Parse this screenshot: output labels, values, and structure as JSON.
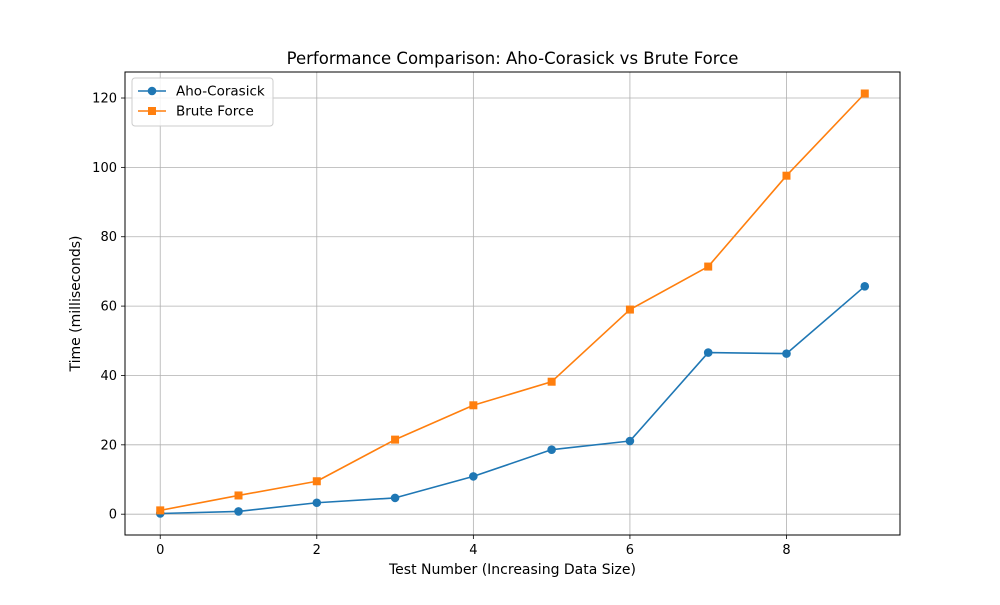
{
  "chart_data": {
    "type": "line",
    "title": "Performance Comparison: Aho-Corasick vs Brute Force",
    "xlabel": "Test Number (Increasing Data Size)",
    "ylabel": "Time (milliseconds)",
    "xlim": [
      -0.45,
      9.45
    ],
    "ylim": [
      -6.0,
      127.5
    ],
    "xticks": [
      0,
      2,
      4,
      6,
      8
    ],
    "yticks": [
      0,
      20,
      40,
      60,
      80,
      100,
      120
    ],
    "grid": true,
    "legend_position": "top-left",
    "x": [
      0,
      1,
      2,
      3,
      4,
      5,
      6,
      7,
      8,
      9
    ],
    "series": [
      {
        "name": "Aho-Corasick",
        "color": "#1f77b4",
        "marker": "circle",
        "values": [
          0.2,
          0.8,
          3.3,
          4.7,
          10.9,
          18.6,
          21.1,
          46.6,
          46.3,
          65.7
        ]
      },
      {
        "name": "Brute Force",
        "color": "#ff7f0e",
        "marker": "square",
        "values": [
          1.1,
          5.4,
          9.5,
          21.5,
          31.4,
          38.2,
          59.0,
          71.4,
          97.6,
          121.3
        ]
      }
    ]
  }
}
